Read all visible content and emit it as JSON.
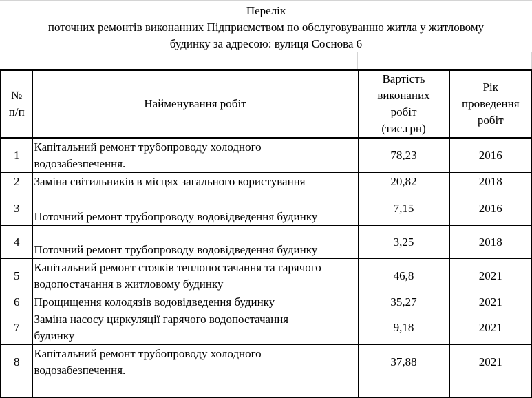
{
  "title": {
    "line1": "Перелік",
    "line2": "поточних ремонтів виконанних Підприємством по обслуговуванню житла у житловому",
    "line3": "будинку за адресою: вулиця Соснова 6"
  },
  "table": {
    "headers": {
      "num": [
        "№",
        "п/п"
      ],
      "name": "Найменування робіт",
      "cost": [
        "Вартість",
        "виконаних",
        "робіт",
        "(тис.грн)"
      ],
      "year": [
        "Рік",
        "проведення",
        "робіт"
      ]
    },
    "rows": [
      {
        "num": "1",
        "name": [
          "Капітальний ремонт трубопроводу холодного",
          "водозабезпечення."
        ],
        "cost": "78,23",
        "year": "2016"
      },
      {
        "num": "2",
        "name": [
          "Заміна світильників в місцях загального користування"
        ],
        "cost": "20,82",
        "year": "2018"
      },
      {
        "num": "3",
        "name": [
          "Поточний ремонт трубопроводу водовідведення будинку"
        ],
        "cost": "7,15",
        "year": "2016"
      },
      {
        "num": "4",
        "name": [
          "Поточний ремонт трубопроводу водовідведення будинку"
        ],
        "cost": "3,25",
        "year": "2018"
      },
      {
        "num": "5",
        "name": [
          "Капітальний ремонт стояків теплопостачання та гарячого",
          "водопостачання в житловому будинку"
        ],
        "cost": "46,8",
        "year": "2021"
      },
      {
        "num": "6",
        "name": [
          "Прощищення колодязів водовідведення будинку"
        ],
        "cost": "35,27",
        "year": "2021"
      },
      {
        "num": "7",
        "name": [
          "Заміна насосу циркуляції гарячого водопостачання",
          "будинку"
        ],
        "cost": "9,18",
        "year": "2021"
      },
      {
        "num": "8",
        "name": [
          "Капітальний ремонт трубопроводу холодного",
          "водозабезпечення."
        ],
        "cost": "37,88",
        "year": "2021"
      }
    ]
  }
}
